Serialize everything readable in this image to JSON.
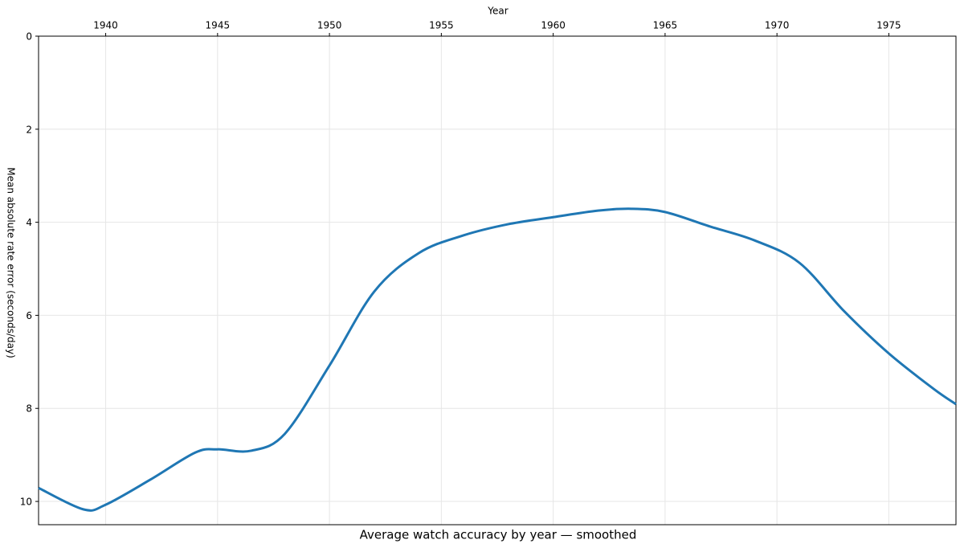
{
  "chart_data": {
    "type": "line",
    "title": "Average watch accuracy by year — smoothed",
    "x_label": "Year",
    "y_label": "Mean absolute rate error (seconds/day)",
    "x": [
      1937,
      1939,
      1940,
      1942,
      1944,
      1945,
      1946.5,
      1948,
      1950,
      1952,
      1954,
      1956,
      1958,
      1960,
      1962,
      1963.5,
      1965,
      1967,
      1969,
      1971,
      1973,
      1975,
      1977,
      1978
    ],
    "series": [
      {
        "name": "Mean absolute rate error",
        "color": "#1f77b4",
        "values": [
          9.71,
          10.17,
          10.07,
          9.53,
          8.95,
          8.88,
          8.91,
          8.55,
          7.08,
          5.49,
          4.66,
          4.28,
          4.04,
          3.89,
          3.75,
          3.71,
          3.78,
          4.09,
          4.39,
          4.87,
          5.91,
          6.82,
          7.58,
          7.91
        ]
      }
    ],
    "xlim": [
      1937,
      1978
    ],
    "ylim": [
      0,
      10.5
    ],
    "xticks": [
      1940,
      1945,
      1950,
      1955,
      1960,
      1965,
      1970,
      1975
    ],
    "yticks": [
      0,
      2,
      4,
      6,
      8,
      10
    ],
    "grid": true
  }
}
